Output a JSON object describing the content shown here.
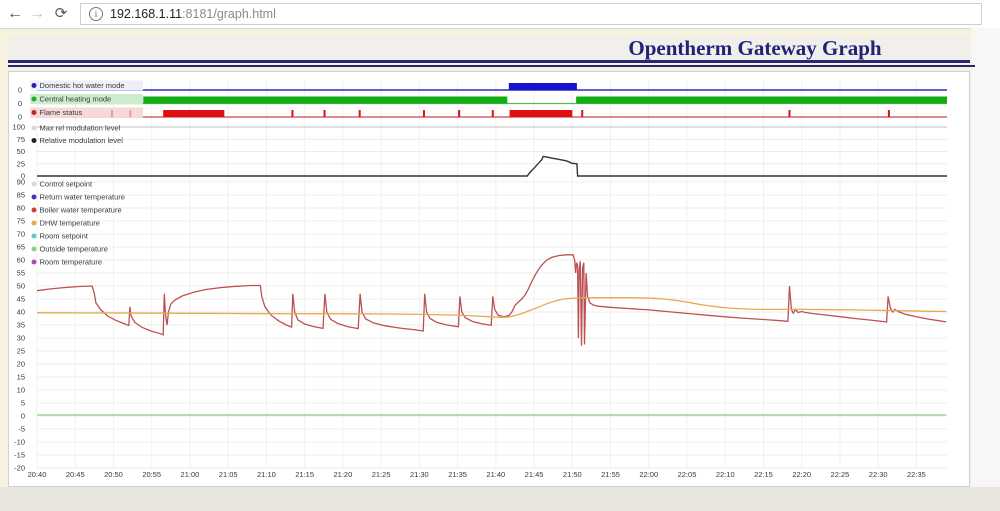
{
  "browser": {
    "url_host": "192.168.1.11",
    "url_rest": ":8181/graph.html",
    "back_glyph": "←",
    "forward_glyph": "→",
    "reload_glyph": "⟳",
    "info_glyph": "i"
  },
  "page": {
    "title": "Opentherm Gateway Graph",
    "accent_color": "#26267b"
  },
  "chart_data": {
    "x_axis": {
      "tick_labels": [
        "20:40",
        "20:45",
        "20:50",
        "20:55",
        "21:00",
        "21:05",
        "21:10",
        "21:15",
        "21:20",
        "21:25",
        "21:30",
        "21:35",
        "21:40",
        "21:45",
        "21:50",
        "21:55",
        "22:00",
        "22:05",
        "22:10",
        "22:15",
        "22:20",
        "22:25",
        "22:30",
        "22:35"
      ],
      "tick_interval_min": 5,
      "total_minutes": 119
    },
    "strips": [
      {
        "type": "state",
        "label": "Domestic hot water mode",
        "ytick": "0",
        "legend_dot_color": "#2222bb",
        "bar_color": "#1414cc",
        "baseline_color": "#2929cc",
        "chip_color": "#edeff9",
        "pale_tick_color": "#eba0a0",
        "on_intervals": [
          [
            61.7,
            70.6
          ]
        ],
        "ticks": [],
        "pale_ticks": []
      },
      {
        "type": "state",
        "label": "Central heating mode",
        "ytick": "0",
        "legend_dot_color": "#22aa22",
        "bar_color": "#12ad12",
        "baseline_color": "#55b855",
        "chip_color": "#cdeccd",
        "pale_tick_color": "#9ad49a",
        "on_intervals": [
          [
            13.9,
            61.5
          ],
          [
            70.5,
            119
          ]
        ],
        "ticks": [],
        "pale_ticks": []
      },
      {
        "type": "state",
        "label": "Flame status",
        "ytick": "0",
        "legend_dot_color": "#cc2222",
        "bar_color": "#dd1111",
        "baseline_color": "#cc4444",
        "chip_color": "#f7d9d9",
        "pale_tick_color": "#eb9a9a",
        "on_intervals": [
          [
            16.5,
            24.5
          ],
          [
            61.8,
            70.0
          ]
        ],
        "ticks": [
          33.4,
          37.6,
          42.2,
          50.6,
          55.2,
          59.6,
          71.3,
          98.4,
          111.4
        ],
        "pale_ticks": [
          9.8,
          12.2
        ]
      }
    ],
    "modulation": {
      "type": "line",
      "ylim": [
        0,
        100
      ],
      "yticks": [
        100,
        75,
        50,
        25,
        0
      ],
      "series": [
        {
          "name": "Max rel modulation level",
          "color": "#cccccc",
          "points": [
            [
              0,
              100
            ],
            [
              119,
              100
            ]
          ]
        },
        {
          "name": "Relative modulation level",
          "color": "#333333",
          "points": [
            [
              0,
              0
            ],
            [
              64.1,
              0
            ],
            [
              64.5,
              8
            ],
            [
              65,
              16
            ],
            [
              65.5,
              25
            ],
            [
              66,
              33
            ],
            [
              66.2,
              40
            ],
            [
              66.6,
              39
            ],
            [
              67.3,
              36.5
            ],
            [
              68.2,
              34
            ],
            [
              69.2,
              31
            ],
            [
              69.7,
              28
            ],
            [
              69.9,
              26
            ],
            [
              70.3,
              25.5
            ],
            [
              70.6,
              25
            ],
            [
              70.7,
              0
            ],
            [
              119,
              0
            ]
          ]
        }
      ]
    },
    "temperature": {
      "type": "line",
      "ylim": [
        -20,
        90
      ],
      "yticks": [
        90,
        85,
        80,
        75,
        70,
        65,
        60,
        55,
        50,
        45,
        40,
        35,
        30,
        25,
        20,
        15,
        10,
        5,
        0,
        -5,
        -10,
        -15,
        -20
      ],
      "series": [
        {
          "name": "Control setpoint",
          "color": "#d9d9d9",
          "points": []
        },
        {
          "name": "Return water temperature",
          "color": "#3b3bb5",
          "points": []
        },
        {
          "name": "Boiler water temperature",
          "color": "#bb5152",
          "points": [
            [
              0,
              48.2
            ],
            [
              1.5,
              48.8
            ],
            [
              3.5,
              49.4
            ],
            [
              5.5,
              49.8
            ],
            [
              7.2,
              50
            ],
            [
              7.5,
              47
            ],
            [
              7.7,
              43.5
            ],
            [
              8.3,
              41
            ],
            [
              9.2,
              38.5
            ],
            [
              10.3,
              36.8
            ],
            [
              11.5,
              35.4
            ],
            [
              12,
              34.8
            ],
            [
              12.15,
              42
            ],
            [
              12.3,
              38.5
            ],
            [
              12.8,
              36
            ],
            [
              13.8,
              34
            ],
            [
              15,
              32.6
            ],
            [
              16.2,
              31.6
            ],
            [
              16.5,
              31.2
            ],
            [
              16.65,
              47
            ],
            [
              16.8,
              39
            ],
            [
              17,
              35
            ],
            [
              17.2,
              40
            ],
            [
              17.5,
              43
            ],
            [
              18,
              44.5
            ],
            [
              19,
              46.2
            ],
            [
              20.5,
              47.6
            ],
            [
              22,
              48.6
            ],
            [
              24,
              49.4
            ],
            [
              26,
              49.9
            ],
            [
              28,
              50.2
            ],
            [
              29.2,
              50.2
            ],
            [
              29.4,
              46
            ],
            [
              29.8,
              42
            ],
            [
              30.6,
              38.8
            ],
            [
              31.6,
              36.6
            ],
            [
              32.6,
              35
            ],
            [
              33.3,
              34.2
            ],
            [
              33.45,
              47
            ],
            [
              33.7,
              40
            ],
            [
              34.1,
              37
            ],
            [
              35,
              35.4
            ],
            [
              36.2,
              34.4
            ],
            [
              37.4,
              33.7
            ],
            [
              37.65,
              47
            ],
            [
              37.9,
              40
            ],
            [
              38.4,
              37.2
            ],
            [
              39.3,
              35.6
            ],
            [
              40.6,
              34.4
            ],
            [
              42,
              33.6
            ],
            [
              42.25,
              47
            ],
            [
              42.5,
              40
            ],
            [
              43,
              37.3
            ],
            [
              44,
              35.8
            ],
            [
              45.5,
              34.7
            ],
            [
              47.5,
              33.8
            ],
            [
              49.5,
              33.1
            ],
            [
              50.5,
              32.7
            ],
            [
              50.7,
              47
            ],
            [
              50.95,
              40
            ],
            [
              51.4,
              37.5
            ],
            [
              52.3,
              36
            ],
            [
              53.6,
              35
            ],
            [
              55.1,
              34.3
            ],
            [
              55.3,
              46
            ],
            [
              55.55,
              40
            ],
            [
              56,
              37.8
            ],
            [
              57,
              36.3
            ],
            [
              58.3,
              35.4
            ],
            [
              59.4,
              34.9
            ],
            [
              59.6,
              46
            ],
            [
              59.85,
              41
            ],
            [
              60.3,
              38.8
            ],
            [
              61,
              38.2
            ],
            [
              61.7,
              38.6
            ],
            [
              62.1,
              40
            ],
            [
              62.5,
              42.5
            ],
            [
              63,
              44
            ],
            [
              63.4,
              45
            ],
            [
              63.8,
              46.5
            ],
            [
              64.2,
              48.5
            ],
            [
              64.6,
              51
            ],
            [
              65,
              53.5
            ],
            [
              65.5,
              56
            ],
            [
              66,
              58
            ],
            [
              66.6,
              59.8
            ],
            [
              67.3,
              61
            ],
            [
              68.2,
              61.7
            ],
            [
              69.2,
              62
            ],
            [
              70.1,
              62
            ],
            [
              70.3,
              60
            ],
            [
              70.45,
              55
            ],
            [
              70.55,
              59
            ],
            [
              70.7,
              58
            ],
            [
              70.8,
              30
            ],
            [
              70.9,
              56
            ],
            [
              71.05,
              59.5
            ],
            [
              71.2,
              27
            ],
            [
              71.35,
              57
            ],
            [
              71.5,
              59
            ],
            [
              71.6,
              27.5
            ],
            [
              71.8,
              55
            ],
            [
              72,
              46
            ],
            [
              72.3,
              43.5
            ],
            [
              72.8,
              42.6
            ],
            [
              73.5,
              42.2
            ],
            [
              75,
              41.8
            ],
            [
              77,
              41.4
            ],
            [
              80,
              40.8
            ],
            [
              83,
              40
            ],
            [
              86,
              39.2
            ],
            [
              89,
              38.4
            ],
            [
              92,
              37.7
            ],
            [
              95,
              37.1
            ],
            [
              97.5,
              36.6
            ],
            [
              98.2,
              36.4
            ],
            [
              98.4,
              50
            ],
            [
              98.65,
              41
            ],
            [
              98.9,
              39.5
            ],
            [
              99.2,
              41
            ],
            [
              99.5,
              39.8
            ],
            [
              100,
              40.2
            ],
            [
              100.5,
              39.8
            ],
            [
              101.5,
              39.4
            ],
            [
              103,
              38.9
            ],
            [
              105,
              38.2
            ],
            [
              107,
              37.5
            ],
            [
              109,
              36.9
            ],
            [
              110.8,
              36.3
            ],
            [
              111.1,
              36.1
            ],
            [
              111.3,
              46
            ],
            [
              111.6,
              41.5
            ],
            [
              111.9,
              40
            ],
            [
              112.2,
              41
            ],
            [
              112.6,
              40.2
            ],
            [
              113.5,
              39.2
            ],
            [
              115,
              38.2
            ],
            [
              116.5,
              37.3
            ],
            [
              118,
              36.6
            ],
            [
              118.9,
              36.2
            ]
          ]
        },
        {
          "name": "DHW temperature",
          "color": "#e7a94e",
          "points": [
            [
              0,
              39.7
            ],
            [
              10,
              39.6
            ],
            [
              20,
              39.5
            ],
            [
              30,
              39.4
            ],
            [
              40,
              39.3
            ],
            [
              48,
              39.2
            ],
            [
              52,
              39
            ],
            [
              55,
              38.8
            ],
            [
              57,
              38.5
            ],
            [
              59,
              38.2
            ],
            [
              60.5,
              38
            ],
            [
              61.5,
              38
            ],
            [
              62.5,
              38.6
            ],
            [
              63.5,
              39.5
            ],
            [
              64.5,
              40.6
            ],
            [
              65.5,
              41.8
            ],
            [
              66.5,
              43
            ],
            [
              67.5,
              44
            ],
            [
              68.5,
              44.8
            ],
            [
              69.5,
              45.2
            ],
            [
              70.5,
              45.4
            ],
            [
              72,
              45.5
            ],
            [
              78,
              45.5
            ],
            [
              80.5,
              45.3
            ],
            [
              82,
              45
            ],
            [
              83.5,
              44.5
            ],
            [
              85,
              43.8
            ],
            [
              86.5,
              43
            ],
            [
              88,
              42.3
            ],
            [
              89.5,
              41.8
            ],
            [
              91,
              41.4
            ],
            [
              93,
              41.1
            ],
            [
              95,
              41
            ],
            [
              100,
              41
            ],
            [
              104,
              40.9
            ],
            [
              107,
              40.8
            ],
            [
              110,
              40.6
            ],
            [
              113,
              40.5
            ],
            [
              116,
              40.3
            ],
            [
              118.9,
              40.2
            ]
          ]
        },
        {
          "name": "Room setpoint",
          "color": "#5cc8c8",
          "points": []
        },
        {
          "name": "Outside temperature",
          "color": "#8ccf8c",
          "points": [
            [
              0,
              0.4
            ],
            [
              118.9,
              0.4
            ]
          ]
        },
        {
          "name": "Room temperature",
          "color": "#b04ab0",
          "points": []
        }
      ]
    }
  }
}
